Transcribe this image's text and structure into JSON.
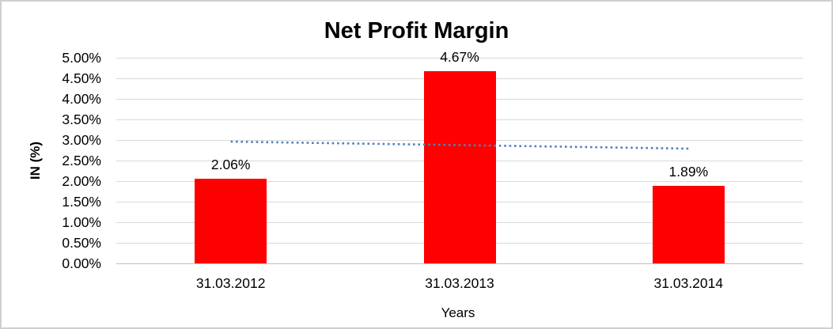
{
  "chart": {
    "title": "Net Profit Margin",
    "ylabel": "IN (%)",
    "xlabel": "Years"
  },
  "chart_data": {
    "type": "bar",
    "title": "Net Profit Margin",
    "xlabel": "Years",
    "ylabel": "IN (%)",
    "categories": [
      "31.03.2012",
      "31.03.2013",
      "31.03.2014"
    ],
    "values": [
      2.06,
      4.67,
      1.89
    ],
    "data_labels": [
      "2.06%",
      "4.67%",
      "1.89%"
    ],
    "y_tick_values": [
      0,
      0.5,
      1,
      1.5,
      2,
      2.5,
      3,
      3.5,
      4,
      4.5,
      5
    ],
    "y_tick_labels": [
      "0.00%",
      "0.50%",
      "1.00%",
      "1.50%",
      "2.00%",
      "2.50%",
      "3.00%",
      "3.50%",
      "4.00%",
      "4.50%",
      "5.00%"
    ],
    "ylim": [
      0,
      5
    ],
    "grid": true,
    "legend": "none",
    "bar_color": "#ff0000",
    "gridline_color": "#d9d9d9",
    "trendline": {
      "type": "linear",
      "style": "dotted",
      "color": "#4f81bd",
      "start_value": 2.96,
      "end_value": 2.79
    }
  }
}
